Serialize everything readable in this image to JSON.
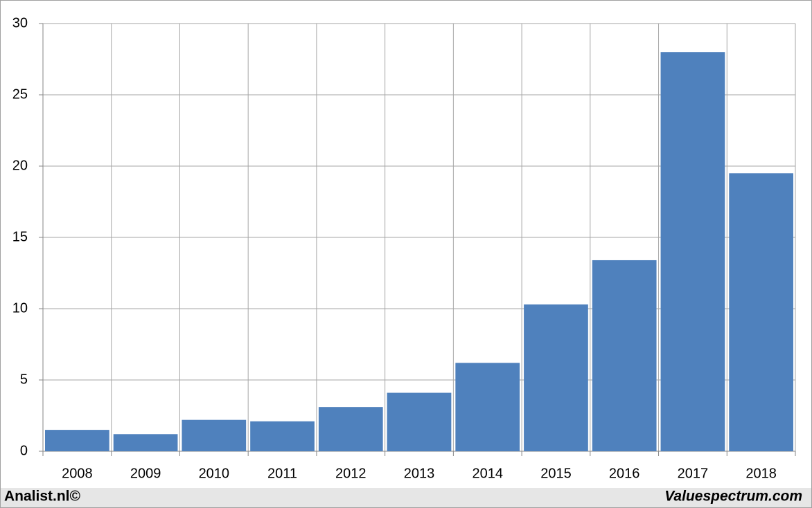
{
  "chart_data": {
    "type": "bar",
    "categories": [
      "2008",
      "2009",
      "2010",
      "2011",
      "2012",
      "2013",
      "2014",
      "2015",
      "2016",
      "2017",
      "2018"
    ],
    "values": [
      1.5,
      1.2,
      2.2,
      2.1,
      3.1,
      4.1,
      6.2,
      10.3,
      13.4,
      28,
      19.5
    ],
    "color": "#4f81bd",
    "ylim": [
      0,
      30
    ],
    "yticks": [
      0,
      5,
      10,
      15,
      20,
      25,
      30
    ],
    "grid": true
  },
  "footer": {
    "left": "Analist.nl©",
    "right": "Valuespectrum.com"
  }
}
